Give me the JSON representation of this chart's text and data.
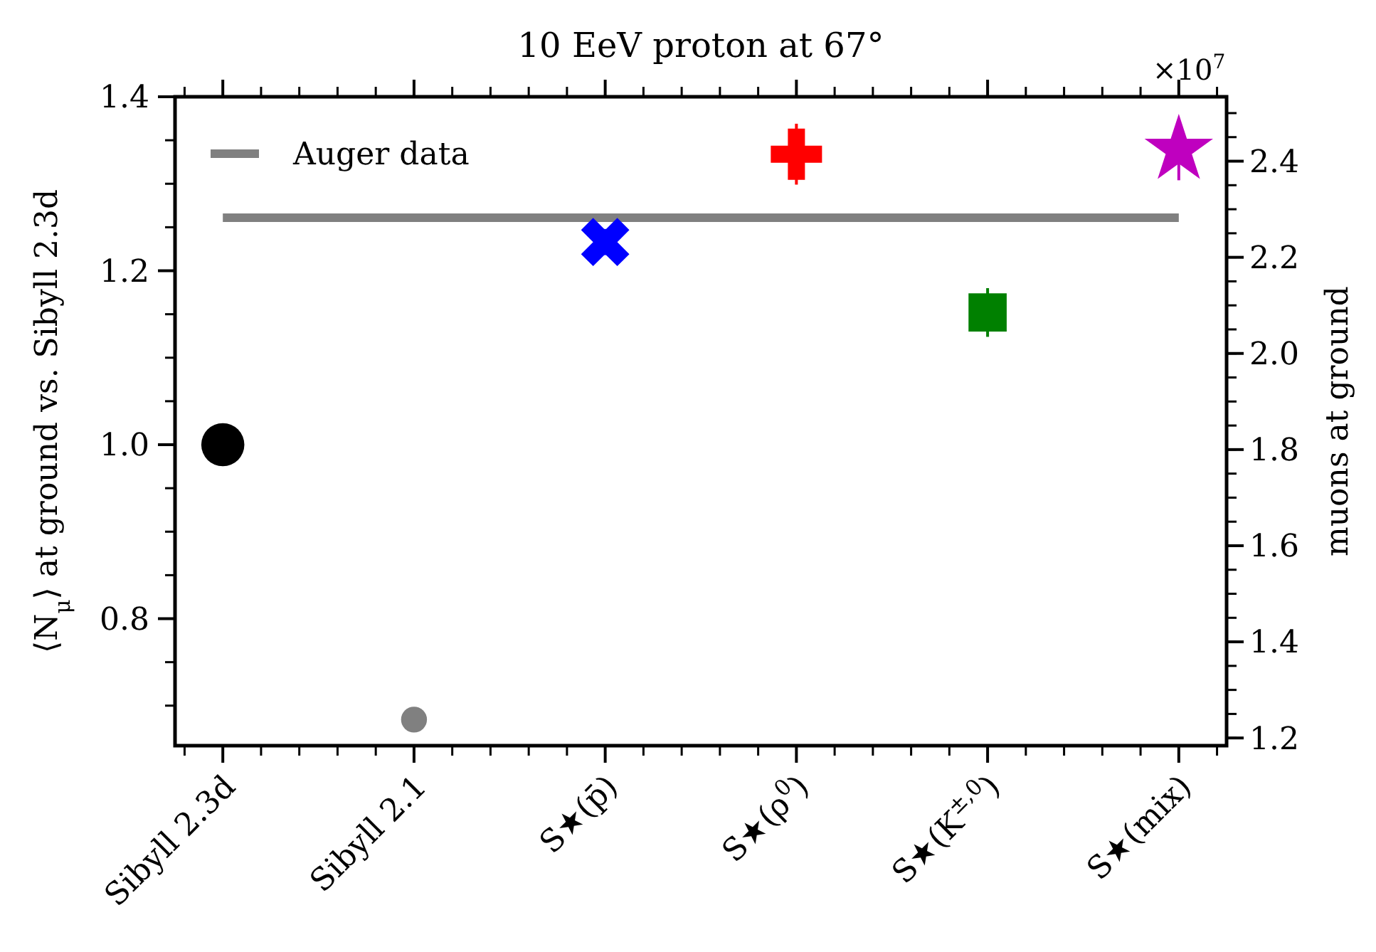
{
  "chart_data": {
    "type": "scatter",
    "title": "10 EeV proton at 67°",
    "ylabel": "⟨N$_{μ}$⟩ at ground vs. Sibyll 2.3d",
    "y2label": "muons at ground",
    "categories": [
      "Sibyll 2.3d",
      "Sibyll 2.1",
      "S★(p̄)",
      "S★(ρ$^{0}$)",
      "S★(K$^{±,0}$)",
      "S★(mix)"
    ],
    "series": [
      {
        "color": "#000000",
        "marker": "circle",
        "values": [
          1.0,
          null,
          null,
          null,
          null,
          null
        ]
      },
      {
        "color": "#808080",
        "marker": "circle",
        "values": [
          null,
          0.684,
          null,
          null,
          null,
          null
        ]
      },
      {
        "color": "#0000ff",
        "marker": "x",
        "values": [
          null,
          null,
          1.233,
          null,
          null,
          null
        ],
        "errors": [
          null,
          null,
          0.015,
          null,
          null,
          null
        ]
      },
      {
        "color": "#ff0000",
        "marker": "cross",
        "values": [
          null,
          null,
          null,
          1.334,
          null,
          null
        ],
        "errors": [
          null,
          null,
          null,
          0.035,
          null,
          null
        ]
      },
      {
        "color": "#008000",
        "marker": "square",
        "values": [
          null,
          null,
          null,
          null,
          1.152,
          null
        ],
        "errors": [
          null,
          null,
          null,
          null,
          0.028,
          null
        ]
      },
      {
        "color": "#bf00bf",
        "marker": "star",
        "values": [
          null,
          null,
          null,
          null,
          null,
          1.339
        ],
        "errors": [
          null,
          null,
          null,
          null,
          null,
          0.035
        ]
      }
    ],
    "ylim": [
      0.654,
      1.4
    ],
    "yticks": [
      0.8,
      {
        "value": 1,
        "label": "1.0"
      },
      1.2,
      1.4
    ],
    "y2lim": [
      1.184,
      2.534
    ],
    "y2ticks": [
      1.2,
      1.4,
      1.6,
      1.8,
      {
        "value": 2,
        "label": "2.0"
      },
      2.2,
      2.4
    ],
    "ref_lines": [
      {
        "axis": "y",
        "value": 1.261,
        "label": "Auger data",
        "color": "#808080"
      }
    ],
    "annotations": [
      "×10$^{7}$"
    ],
    "legend": "top left",
    "grid": false
  }
}
